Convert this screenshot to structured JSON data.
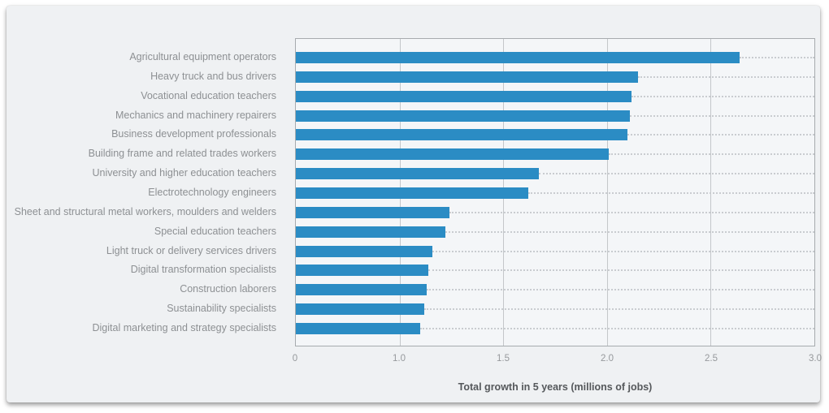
{
  "chart_data": {
    "type": "bar",
    "orientation": "horizontal",
    "title": "",
    "xlabel": "Total growth in 5 years (millions of jobs)",
    "ylabel": "",
    "categories": [
      "Agricultural equipment operators",
      "Heavy truck and bus drivers",
      "Vocational education teachers",
      "Mechanics and machinery repairers",
      "Business development professionals",
      "Building frame and related trades workers",
      "University and higher education teachers",
      "Electrotechnology engineers",
      "Sheet and structural metal workers, moulders and welders",
      "Special education teachers",
      "Light truck or delivery services drivers",
      "Digital transformation specialists",
      "Construction laborers",
      "Sustainability specialists",
      "Digital marketing and strategy specialists"
    ],
    "values": [
      2.64,
      2.15,
      2.12,
      2.11,
      2.1,
      2.01,
      1.67,
      1.62,
      1.24,
      1.22,
      1.16,
      1.14,
      1.13,
      1.12,
      1.1
    ],
    "x_tick_labels": [
      "0",
      "1.0",
      "1.5",
      "2.0",
      "2.5",
      "3.0"
    ],
    "x_tick_values": [
      0,
      1.0,
      1.5,
      2.0,
      2.5,
      3.0
    ],
    "axis_note": "six gridlines equally spaced; tick labels jump 0 to 1.0 then step 0.5",
    "grid": "vertical solid gridlines on; dotted leader lines from bar end to right edge; no legend",
    "legend": "none",
    "bar_color": "#2b8cc4"
  },
  "colors": {
    "card_background": "#eff1f3",
    "plot_background": "#f4f6f8",
    "plot_border": "#a7abae",
    "gridline": "#c4c7ca",
    "leader_dots": "#c9ccd0",
    "category_label_text": "#8d9093",
    "tick_label_text": "#96999c",
    "axis_title_text": "#55585b",
    "bar": "#2b8cc4"
  }
}
